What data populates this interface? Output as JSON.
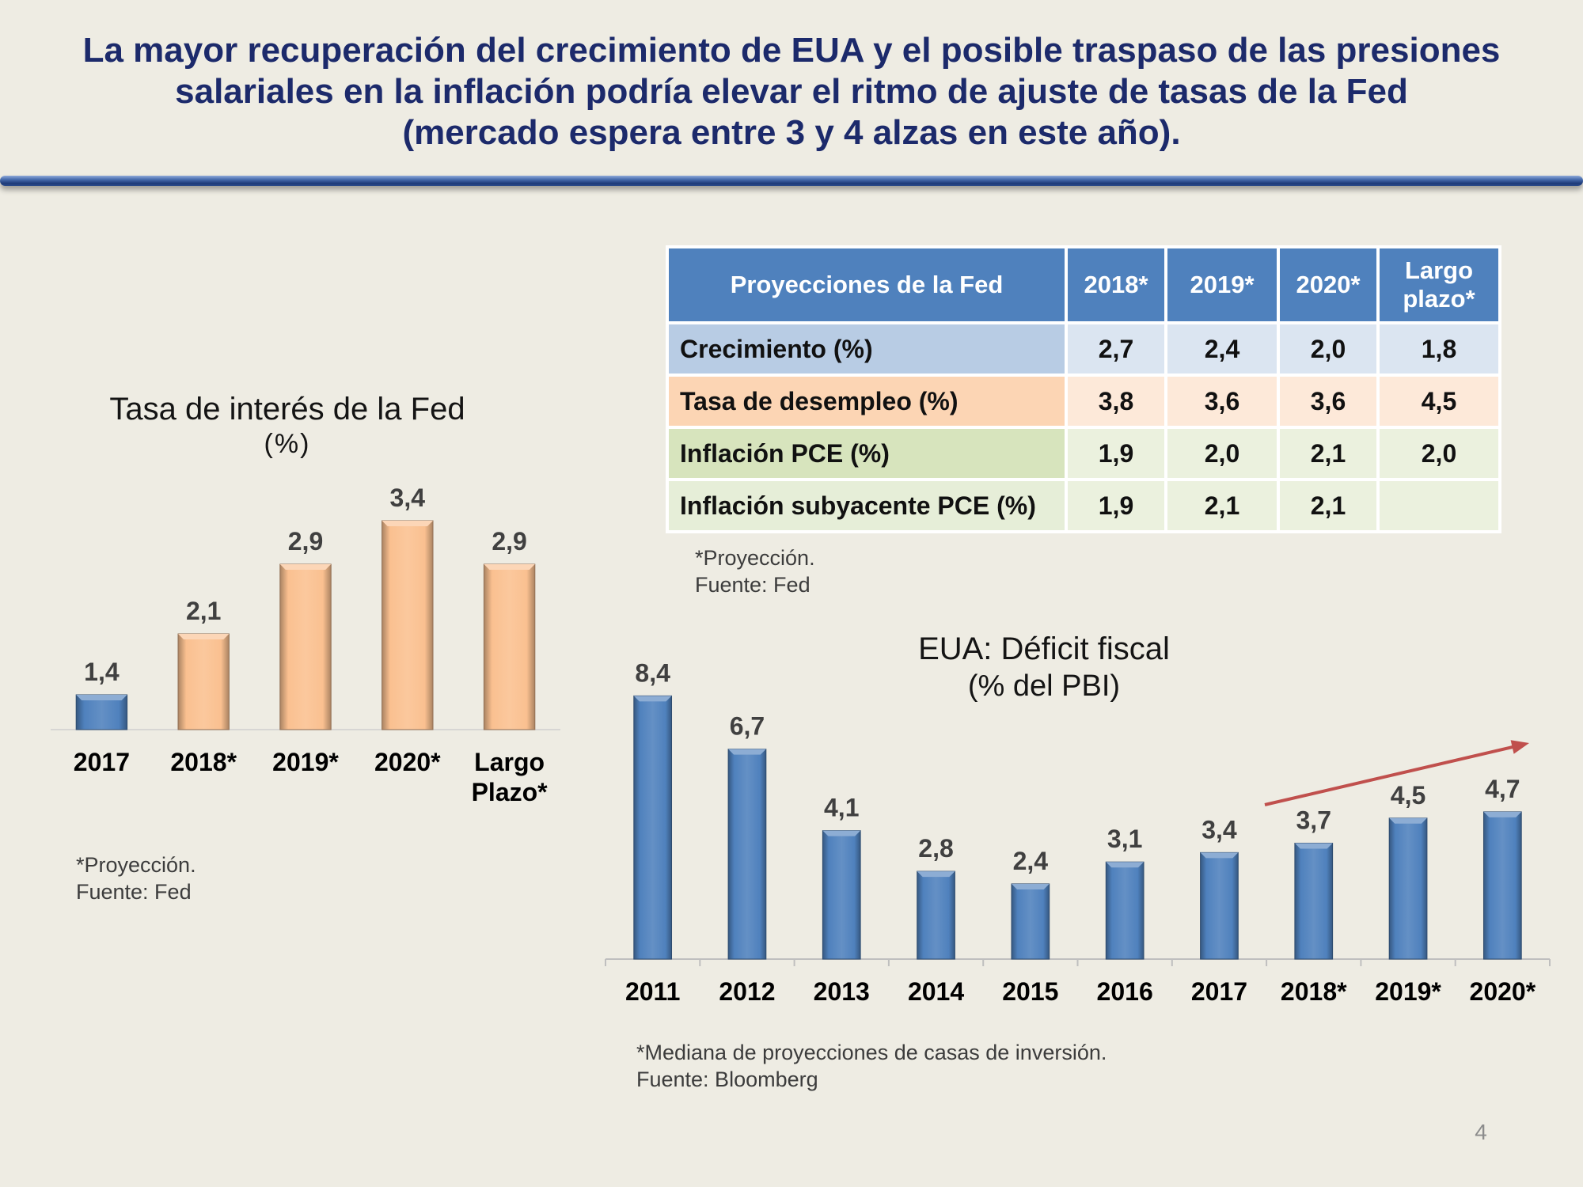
{
  "slide": {
    "title_lines": [
      "La mayor recuperación del crecimiento de EUA y el posible traspaso de las presiones",
      "salariales en la inflación podría elevar el ritmo de ajuste de tasas de la Fed",
      "(mercado espera entre 3 y 4 alzas en este año)."
    ],
    "page_number": "4"
  },
  "left_panel": {
    "notes": [
      "*Proyección.",
      "Fuente: Fed"
    ]
  },
  "table": {
    "headers": [
      "Proyecciones de la Fed",
      "2018*",
      "2019*",
      "2020*",
      "Largo\nplazo*"
    ],
    "rows": [
      {
        "label": "Crecimiento (%)",
        "values": [
          "2,7",
          "2,4",
          "2,0",
          "1,8"
        ]
      },
      {
        "label": "Tasa de desempleo (%)",
        "values": [
          "3,8",
          "3,6",
          "3,6",
          "4,5"
        ]
      },
      {
        "label": "Inflación PCE (%)",
        "values": [
          "1,9",
          "2,0",
          "2,1",
          "2,0"
        ]
      },
      {
        "label": "Inflación subyacente PCE (%)",
        "values": [
          "1,9",
          "2,1",
          "2,1",
          ""
        ]
      }
    ],
    "notes": [
      "*Proyección.",
      "Fuente: Fed"
    ]
  },
  "right_panel": {
    "notes": [
      "*Mediana de proyecciones de casas de inversión.",
      "Fuente: Bloomberg"
    ]
  },
  "chart_data": [
    {
      "type": "bar",
      "title": "Tasa de interés de la Fed",
      "subtitle": "(%)",
      "xlabel": "",
      "ylabel": "",
      "categories": [
        "2017",
        "2018*",
        "2019*",
        "2020*",
        "Largo\nPlazo*"
      ],
      "values": [
        1.4,
        2.1,
        2.9,
        3.4,
        2.9
      ],
      "bar_colors": [
        "#4f81bd",
        "#fac090",
        "#fac090",
        "#fac090",
        "#fac090"
      ],
      "ylim": [
        1.0,
        4.0
      ],
      "grid": false
    },
    {
      "type": "bar",
      "title": "EUA: Déficit fiscal",
      "subtitle": "(% del PBI)",
      "xlabel": "",
      "ylabel": "",
      "categories": [
        "2011",
        "2012",
        "2013",
        "2014",
        "2015",
        "2016",
        "2017",
        "2018*",
        "2019*",
        "2020*"
      ],
      "values": [
        8.4,
        6.7,
        4.1,
        2.8,
        2.4,
        3.1,
        3.4,
        3.7,
        4.5,
        4.7
      ],
      "bar_colors": [
        "#4f81bd",
        "#4f81bd",
        "#4f81bd",
        "#4f81bd",
        "#4f81bd",
        "#4f81bd",
        "#4f81bd",
        "#4f81bd",
        "#4f81bd",
        "#4f81bd"
      ],
      "ylim": [
        0,
        10
      ],
      "grid": false
    }
  ]
}
